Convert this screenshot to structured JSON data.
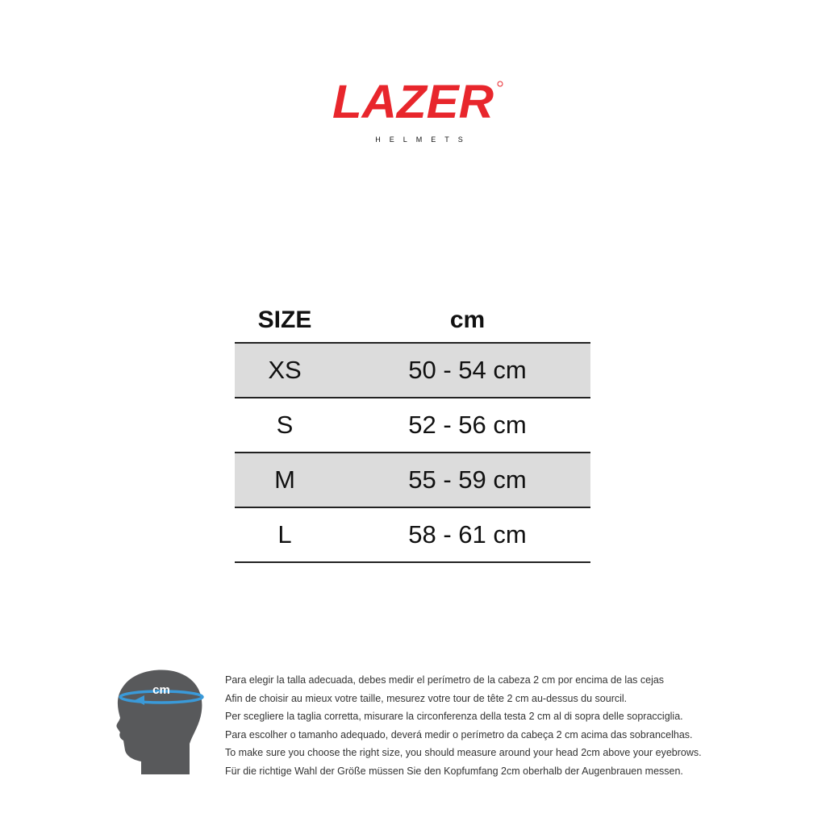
{
  "logo": {
    "brand": "LAZER",
    "sub": "HELMETS",
    "color": "#e8262c"
  },
  "table": {
    "headers": {
      "size": "SIZE",
      "cm": "cm"
    },
    "rows": [
      {
        "size": "XS",
        "range": "50 - 54 cm",
        "shaded": true
      },
      {
        "size": "S",
        "range": "52 - 56 cm",
        "shaded": false
      },
      {
        "size": "M",
        "range": "55 - 59 cm",
        "shaded": true
      },
      {
        "size": "L",
        "range": "58 - 61 cm",
        "shaded": false
      }
    ]
  },
  "head_icon": {
    "label": "cm",
    "head_color": "#58595b",
    "ring_color": "#3a9ad9"
  },
  "instructions": [
    "Para elegir la talla adecuada, debes medir el perímetro de la cabeza 2 cm por encima de las cejas",
    "Afin de choisir au mieux votre taille, mesurez votre tour de tête 2 cm au-dessus du sourcil.",
    "Per scegliere la taglia corretta, misurare la circonferenza della testa 2 cm al di sopra delle sopracciglia.",
    "Para escolher o tamanho adequado, deverá medir o perímetro da cabeça 2 cm acima das sobrancelhas.",
    "To make sure you choose the right size, you should measure around your head 2cm above your eyebrows.",
    "Für die richtige Wahl der Größe müssen Sie den Kopfumfang 2cm oberhalb der Augenbrauen messen."
  ]
}
